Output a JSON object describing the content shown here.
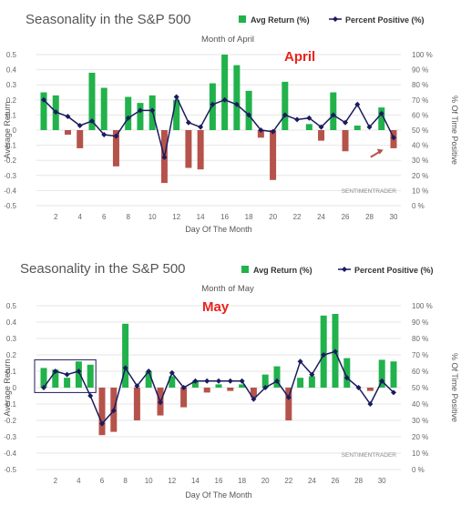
{
  "colors": {
    "positive_bar": "#21b24b",
    "negative_bar": "#b5534b",
    "line": "#1b1b5e",
    "grid": "#e6e6e6",
    "arrow": "#b5534b",
    "annotation_box": "#1b1b5e",
    "month_label": "#e8231c"
  },
  "legend": {
    "avg_return": "Avg Return (%)",
    "percent_positive": "Percent Positive (%)"
  },
  "chart_data": [
    {
      "type": "bar",
      "title": "Seasonality in the S&P 500",
      "subtitle": "Month of April",
      "month_label": "April",
      "xlabel": "Day Of The Month",
      "ylabel": "Average Return",
      "y2label": "% Of Time Positive",
      "watermark": "SENTIMENTRADER",
      "ylim": [
        -0.5,
        0.5
      ],
      "y2lim": [
        0,
        100
      ],
      "yticks": [
        "0.5",
        "0.4",
        "0.3",
        "0.2",
        "0.1",
        "0",
        "-0.1",
        "-0.2",
        "-0.3",
        "-0.4",
        "-0.5"
      ],
      "y2ticks": [
        "100 %",
        "90 %",
        "80 %",
        "70 %",
        "60 %",
        "50 %",
        "40 %",
        "30 %",
        "20 %",
        "10 %",
        "0 %"
      ],
      "xticks": [
        "2",
        "4",
        "6",
        "8",
        "10",
        "12",
        "14",
        "16",
        "18",
        "20",
        "22",
        "24",
        "26",
        "28",
        "30"
      ],
      "x": [
        1,
        2,
        3,
        4,
        5,
        6,
        7,
        8,
        9,
        10,
        11,
        12,
        13,
        14,
        15,
        16,
        17,
        18,
        19,
        20,
        21,
        22,
        23,
        24,
        25,
        26,
        27,
        28,
        29,
        30
      ],
      "series": [
        {
          "name": "Avg Return (%)",
          "values": [
            0.25,
            0.23,
            -0.03,
            -0.12,
            0.38,
            0.28,
            -0.24,
            0.22,
            0.18,
            0.23,
            -0.35,
            0.2,
            -0.25,
            -0.26,
            0.31,
            0.5,
            0.43,
            0.26,
            -0.05,
            -0.33,
            0.32,
            0.0,
            0.04,
            -0.07,
            0.25,
            -0.14,
            0.03,
            0.0,
            0.15,
            -0.12
          ]
        },
        {
          "name": "Percent Positive (%)",
          "values": [
            70,
            62,
            59,
            53,
            56,
            47,
            46,
            58,
            63,
            63,
            32,
            72,
            55,
            52,
            67,
            70,
            67,
            60,
            50,
            49,
            60,
            57,
            58,
            52,
            60,
            55,
            67,
            52,
            61,
            45
          ]
        }
      ]
    },
    {
      "type": "bar",
      "title": "Seasonality in the S&P 500",
      "subtitle": "Month of May",
      "month_label": "May",
      "xlabel": "Day Of The Month",
      "ylabel": "Average Return",
      "y2label": "% Of Time Positive",
      "watermark": "SENTIMENTRADER",
      "ylim": [
        -0.5,
        0.5
      ],
      "y2lim": [
        0,
        100
      ],
      "yticks": [
        "0.5",
        "0.4",
        "0.3",
        "0.2",
        "0.1",
        "0",
        "-0.1",
        "-0.2",
        "-0.3",
        "-0.4",
        "-0.5"
      ],
      "y2ticks": [
        "100 %",
        "90 %",
        "80 %",
        "70 %",
        "60 %",
        "50 %",
        "40 %",
        "30 %",
        "20 %",
        "10 %",
        "0 %"
      ],
      "xticks": [
        "2",
        "4",
        "6",
        "8",
        "10",
        "12",
        "14",
        "16",
        "18",
        "20",
        "22",
        "24",
        "26",
        "28",
        "30"
      ],
      "x": [
        1,
        2,
        3,
        4,
        5,
        6,
        7,
        8,
        9,
        10,
        11,
        12,
        13,
        14,
        15,
        16,
        17,
        18,
        19,
        20,
        21,
        22,
        23,
        24,
        25,
        26,
        27,
        28,
        29,
        30,
        31
      ],
      "series": [
        {
          "name": "Avg Return (%)",
          "values": [
            0.12,
            0.11,
            0.06,
            0.16,
            0.14,
            -0.29,
            -0.27,
            0.39,
            -0.2,
            0.1,
            -0.17,
            0.07,
            -0.12,
            0.04,
            -0.03,
            0.02,
            -0.02,
            0.02,
            -0.06,
            0.08,
            0.13,
            -0.2,
            0.06,
            0.07,
            0.44,
            0.45,
            0.18,
            0.0,
            -0.02,
            0.17,
            0.16
          ]
        },
        {
          "name": "Percent Positive (%)",
          "values": [
            50,
            60,
            58,
            60,
            45,
            28,
            36,
            62,
            51,
            60,
            41,
            59,
            50,
            54,
            54,
            54,
            54,
            54,
            43,
            50,
            54,
            44,
            66,
            58,
            70,
            72,
            56,
            50,
            40,
            54,
            47
          ]
        }
      ]
    }
  ]
}
